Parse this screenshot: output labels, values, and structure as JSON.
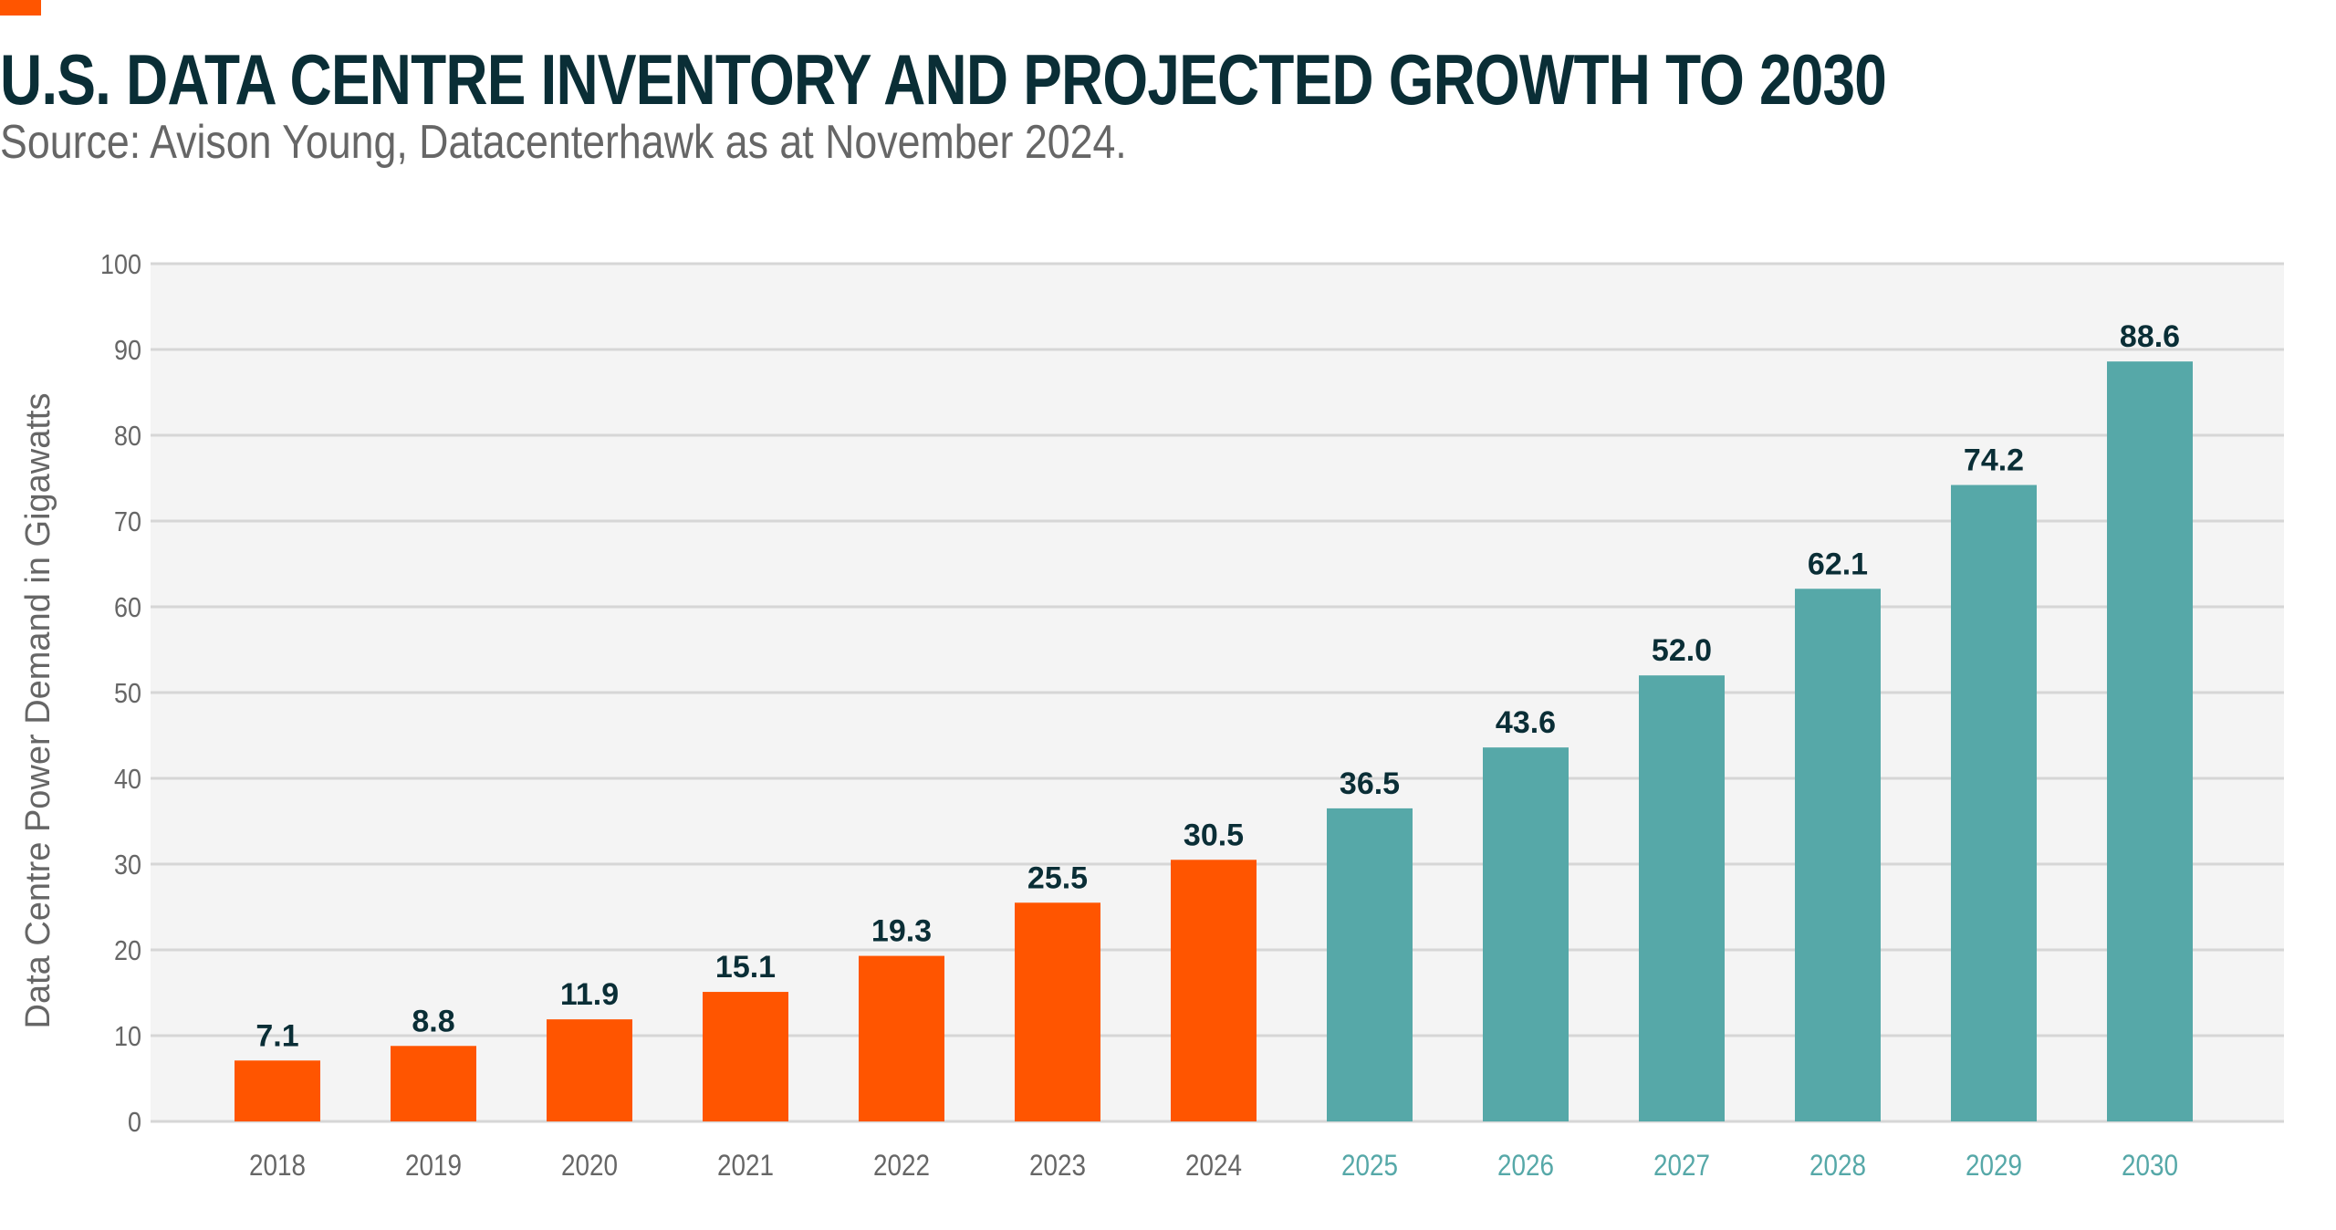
{
  "title": "U.S. DATA CENTRE INVENTORY AND PROJECTED GROWTH TO 2030",
  "subtitle": "Source: Avison Young, Datacenterhawk as at November 2024.",
  "chart_data": {
    "type": "bar",
    "title": "U.S. DATA CENTRE INVENTORY AND PROJECTED GROWTH TO 2030",
    "xlabel": "",
    "ylabel": "Data Centre Power Demand in Gigawatts",
    "ylim": [
      0,
      100
    ],
    "yticks": [
      0,
      10,
      20,
      30,
      40,
      50,
      60,
      70,
      80,
      90,
      100
    ],
    "grid": true,
    "categories": [
      "2018",
      "2019",
      "2020",
      "2021",
      "2022",
      "2023",
      "2024",
      "2025",
      "2026",
      "2027",
      "2028",
      "2029",
      "2030"
    ],
    "values": [
      7.1,
      8.8,
      11.9,
      15.1,
      19.3,
      25.5,
      30.5,
      36.5,
      43.6,
      52.0,
      62.1,
      74.2,
      88.6
    ],
    "labels": [
      "7.1",
      "8.8",
      "11.9",
      "15.1",
      "19.3",
      "25.5",
      "30.5",
      "36.5",
      "43.6",
      "52.0",
      "62.1",
      "74.2",
      "88.6"
    ],
    "projected": [
      false,
      false,
      false,
      false,
      false,
      false,
      false,
      true,
      true,
      true,
      true,
      true,
      true
    ],
    "colors": {
      "historical": "#FF5500",
      "projected": "#56A8A8",
      "label": "#0A2E36",
      "axis_text": "#666666",
      "plot_bg": "#F4F4F4",
      "grid": "#D6D6D6"
    }
  }
}
